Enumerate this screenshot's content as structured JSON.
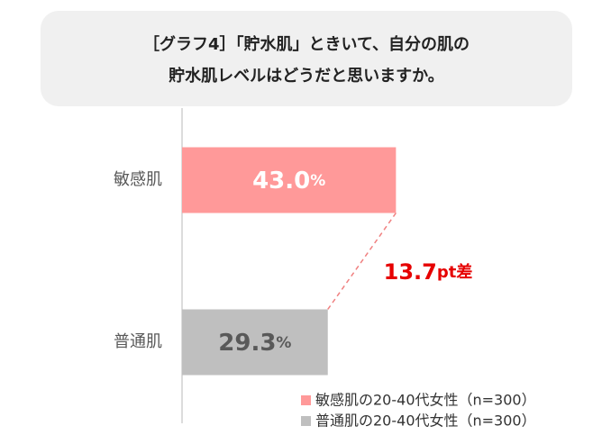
{
  "chart_data": {
    "type": "bar",
    "orientation": "horizontal",
    "title": [
      "［グラフ4］「貯水肌」ときいて、自分の肌の",
      "貯水肌レベルはどうだと思いますか。"
    ],
    "categories": [
      "敏感肌",
      "普通肌"
    ],
    "series": [
      {
        "name": "敏感肌の20-40代女性（n=300）",
        "color": "#ff9999",
        "label_color": "#ffffff",
        "values": [
          43.0,
          null
        ],
        "value_labels": [
          "43.0%",
          null
        ]
      },
      {
        "name": "普通肌の20-40代女性（n=300）",
        "color": "#bfbfbf",
        "label_color": "#595959",
        "values": [
          null,
          29.3
        ],
        "value_labels": [
          null,
          "29.3%"
        ]
      }
    ],
    "xlim": [
      0,
      50
    ],
    "annotation": "13.7pt差",
    "annotation_color": "#e60000"
  }
}
